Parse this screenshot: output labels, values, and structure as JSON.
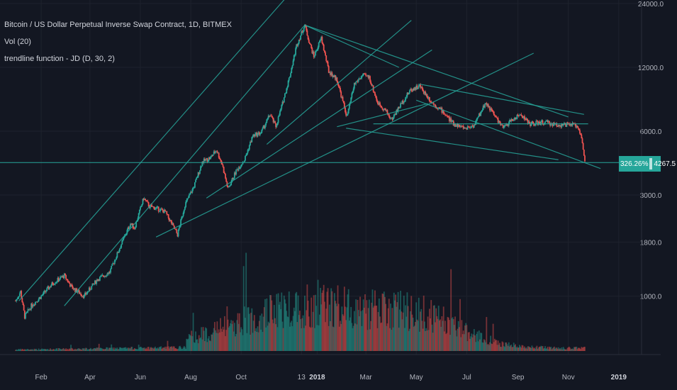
{
  "legend": {
    "symbol": "Bitcoin / US Dollar Perpetual Inverse Swap Contract, 1D, BITMEX",
    "volume": "Vol (20)",
    "indicator": "trendline function - JD (D, 30, 2)"
  },
  "price_badge": {
    "percent": "326.26%",
    "price": "4267.5"
  },
  "colors": {
    "background": "#131722",
    "up_candle": "#26a69a",
    "down_candle": "#ef5350",
    "trendline": "#26a69a",
    "axis_text": "#b2b5be",
    "grid": "#1e222d"
  },
  "chart_data": {
    "type": "line",
    "scale": "log",
    "title": "Bitcoin / US Dollar Perpetual Inverse Swap Contract, 1D, BITMEX",
    "x_tick_labels": [
      "Feb",
      "Apr",
      "Jun",
      "Aug",
      "Oct",
      "13",
      "2018",
      "Mar",
      "May",
      "Jul",
      "Sep",
      "Nov",
      "2019"
    ],
    "y_tick_labels": [
      "24000.0",
      "12000.0",
      "6000.0",
      "3000.0",
      "1800.0",
      "1000.0"
    ],
    "y_tick_values": [
      24000,
      12000,
      6000,
      3000,
      1800,
      1000
    ],
    "last_price": 4267.5,
    "last_change_percent": 326.26,
    "series": [
      {
        "name": "price",
        "x": [
          "2017-01-01",
          "2017-01-07",
          "2017-01-12",
          "2017-01-20",
          "2017-02-01",
          "2017-02-15",
          "2017-03-01",
          "2017-03-10",
          "2017-03-25",
          "2017-04-10",
          "2017-04-25",
          "2017-05-10",
          "2017-05-20",
          "2017-05-25",
          "2017-06-05",
          "2017-06-12",
          "2017-06-20",
          "2017-07-01",
          "2017-07-16",
          "2017-07-25",
          "2017-08-05",
          "2017-08-15",
          "2017-08-25",
          "2017-09-01",
          "2017-09-08",
          "2017-09-15",
          "2017-09-25",
          "2017-10-05",
          "2017-10-15",
          "2017-10-25",
          "2017-11-05",
          "2017-11-12",
          "2017-11-20",
          "2017-11-29",
          "2017-12-07",
          "2017-12-17",
          "2017-12-22",
          "2017-12-28",
          "2018-01-06",
          "2018-01-15",
          "2018-01-25",
          "2018-02-06",
          "2018-02-15",
          "2018-02-25",
          "2018-03-05",
          "2018-03-15",
          "2018-03-25",
          "2018-04-01",
          "2018-04-12",
          "2018-04-24",
          "2018-05-05",
          "2018-05-20",
          "2018-06-01",
          "2018-06-15",
          "2018-06-29",
          "2018-07-10",
          "2018-07-24",
          "2018-08-05",
          "2018-08-14",
          "2018-08-25",
          "2018-09-05",
          "2018-09-15",
          "2018-09-25",
          "2018-10-05",
          "2018-10-15",
          "2018-10-25",
          "2018-11-05",
          "2018-11-13",
          "2018-11-17",
          "2018-11-21"
        ],
        "values": [
          950,
          1050,
          800,
          900,
          1000,
          1150,
          1250,
          1100,
          1000,
          1200,
          1300,
          1800,
          2200,
          2100,
          2900,
          2650,
          2600,
          2500,
          1950,
          2700,
          3300,
          4300,
          4500,
          4900,
          4200,
          3200,
          3900,
          4400,
          5700,
          5900,
          7200,
          6300,
          8100,
          11000,
          15200,
          19000,
          16000,
          13500,
          16500,
          11500,
          10500,
          7000,
          10000,
          11000,
          10800,
          8200,
          7500,
          6800,
          8000,
          9400,
          9800,
          8200,
          7500,
          6500,
          6200,
          6400,
          8200,
          7000,
          6200,
          6800,
          7200,
          6500,
          6550,
          6600,
          6450,
          6400,
          6450,
          6300,
          5600,
          4267.5
        ]
      }
    ],
    "trendlines": 12
  }
}
